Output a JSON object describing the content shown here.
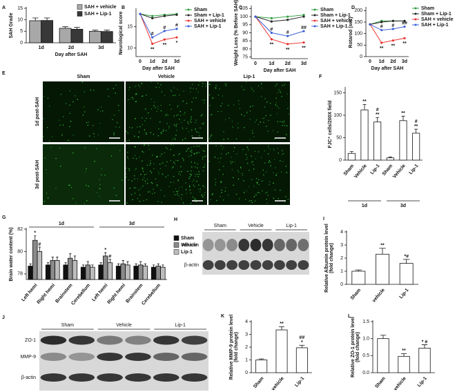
{
  "chart_data": [
    {
      "panel": "A",
      "type": "bar",
      "y_label": "SAH Grade",
      "x_label": "Day after SAH",
      "categories": [
        "1d",
        "2d",
        "3d"
      ],
      "ylim": [
        0,
        15
      ],
      "yticks": [
        0,
        5,
        10,
        15
      ],
      "legend": "top-right",
      "series": [
        {
          "name": "SAH + vehicle",
          "color": "#a8a8a8",
          "values": [
            9.6,
            6.3,
            5.0
          ],
          "errors": [
            1.2,
            0.7,
            0.5
          ]
        },
        {
          "name": "SAH + Lip-1",
          "color": "#383838",
          "values": [
            9.7,
            5.9,
            4.9
          ],
          "errors": [
            1.1,
            0.8,
            0.6
          ]
        }
      ]
    },
    {
      "panel": "B",
      "type": "line",
      "y_label": "Neurological score",
      "x_label": "Day after SAH",
      "categories": [
        "0",
        "1d",
        "2d",
        "3d"
      ],
      "ylim": [
        8,
        19
      ],
      "yticks": [
        10,
        15
      ],
      "legend": "right",
      "series": [
        {
          "name": "Sham",
          "color": "#2e9e3e",
          "values": [
            18,
            17.5,
            17.8,
            18
          ]
        },
        {
          "name": "Sham + Lip-1",
          "color": "#222222",
          "values": [
            18,
            17,
            17.5,
            17.8
          ]
        },
        {
          "name": "SAH + vehicle",
          "color": "#e8322e",
          "values": [
            18,
            11,
            12,
            12.5
          ],
          "annotations": [
            null,
            "**",
            "**",
            "*"
          ]
        },
        {
          "name": "SAH + Lip-1",
          "color": "#3a5fd8",
          "values": [
            18,
            12.5,
            14,
            14.5
          ],
          "annotations": [
            null,
            "#",
            "#",
            "#"
          ]
        }
      ]
    },
    {
      "panel": "C",
      "type": "line",
      "y_label": "Weight Loss (% Before SAH)",
      "x_label": "Day after SAH",
      "categories": [
        "0",
        "1d",
        "2d",
        "3d"
      ],
      "ylim": [
        74,
        106
      ],
      "yticks": [
        75,
        80,
        85,
        90,
        95,
        100,
        105
      ],
      "legend": "right",
      "series": [
        {
          "name": "Sham",
          "color": "#2e9e3e",
          "values": [
            100,
            99,
            100,
            101
          ]
        },
        {
          "name": "Sham + Lip-1",
          "color": "#222222",
          "values": [
            100,
            97,
            98,
            100
          ]
        },
        {
          "name": "SAH + vehicle",
          "color": "#e8322e",
          "values": [
            100,
            86,
            83,
            84
          ],
          "annotations": [
            null,
            "**",
            "**",
            "**"
          ]
        },
        {
          "name": "SAH + Lip-1",
          "color": "#3a5fd8",
          "values": [
            100,
            90,
            88,
            91
          ],
          "annotations": [
            null,
            "#",
            "#",
            "##"
          ]
        }
      ]
    },
    {
      "panel": "D",
      "type": "line",
      "y_label": "Rotarod (sec)",
      "x_label": "Day after SAH",
      "categories": [
        "0",
        "1d",
        "2d",
        "3d"
      ],
      "ylim": [
        0,
        210
      ],
      "yticks": [
        0,
        50,
        100,
        150,
        200
      ],
      "legend": "right",
      "series": [
        {
          "name": "Sham",
          "color": "#2e9e3e",
          "values": [
            140,
            155,
            155,
            155
          ]
        },
        {
          "name": "Sham + Lip-1",
          "color": "#222222",
          "values": [
            140,
            150,
            155,
            155
          ]
        },
        {
          "name": "SAH + vehicle",
          "color": "#e8322e",
          "values": [
            140,
            60,
            70,
            80
          ],
          "annotations": [
            null,
            "**",
            "**",
            "**"
          ]
        },
        {
          "name": "SAH + Lip-1",
          "color": "#3a5fd8",
          "values": [
            140,
            115,
            120,
            130
          ],
          "annotations": [
            null,
            "#",
            "#",
            "##"
          ]
        }
      ]
    },
    {
      "panel": "F",
      "type": "bar",
      "y_label": "FJC⁺ cells/200X field",
      "categories": [
        "Sham",
        "Vehicle",
        "Lip-1",
        "Sham",
        "Vehicle",
        "Lip-1"
      ],
      "groups": [
        "1d",
        "3d"
      ],
      "ylim": [
        0,
        160
      ],
      "yticks": [
        0,
        50,
        100,
        150
      ],
      "series": [
        {
          "color": "#ffffff",
          "values": [
            15,
            112,
            85,
            5,
            88,
            60
          ],
          "errors": [
            4,
            12,
            10,
            2,
            10,
            9
          ],
          "annotations": [
            null,
            "**",
            [
              "#",
              "**"
            ],
            null,
            "**",
            [
              "#",
              "**"
            ]
          ]
        }
      ]
    },
    {
      "panel": "G",
      "type": "bar",
      "y_label": "Brain water content (%)",
      "categories": [
        "Left hemi",
        "Right hemi",
        "Brainstem",
        "Cerebellum",
        "Left hemi",
        "Right hemi",
        "Brainstem",
        "Cerebellum"
      ],
      "groups": [
        "1d",
        "3d"
      ],
      "ylim": [
        77.5,
        82
      ],
      "yticks": [
        78,
        80,
        82
      ],
      "legend": "right",
      "series": [
        {
          "name": "Sham",
          "color": "#111111",
          "values": [
            78.7,
            78.8,
            78.8,
            78.6,
            78.8,
            78.7,
            78.7,
            78.6
          ],
          "errors": [
            0.2,
            0.2,
            0.2,
            0.2,
            0.2,
            0.2,
            0.2,
            0.2
          ]
        },
        {
          "name": "Vehicle",
          "color": "#8a8a8a",
          "values": [
            81.0,
            79.2,
            79.4,
            78.8,
            79.6,
            78.9,
            78.8,
            78.7
          ],
          "errors": [
            0.4,
            0.3,
            0.4,
            0.3,
            0.3,
            0.3,
            0.3,
            0.2
          ],
          "annotations": [
            "*",
            null,
            null,
            null,
            "*",
            null,
            null,
            null
          ]
        },
        {
          "name": "Lip-1",
          "color": "#bdbdbd",
          "values": [
            80.0,
            79.2,
            79.2,
            78.6,
            79.0,
            78.8,
            78.7,
            78.6
          ],
          "errors": [
            0.4,
            0.3,
            0.4,
            0.2,
            0.3,
            0.3,
            0.2,
            0.2
          ],
          "annotations": [
            "#",
            null,
            null,
            null,
            "#",
            null,
            null,
            null
          ]
        }
      ]
    },
    {
      "panel": "I",
      "type": "bar",
      "y_label": [
        "Relative Albumin protein level",
        "(fold change)"
      ],
      "categories": [
        "Sham",
        "vehicle",
        "Lip-1"
      ],
      "ylim": [
        0,
        4
      ],
      "yticks": [
        0,
        1,
        2,
        3,
        4
      ],
      "series": [
        {
          "color": "#ffffff",
          "values": [
            1.0,
            2.3,
            1.6
          ],
          "errors": [
            0.1,
            0.45,
            0.3
          ],
          "annotations": [
            null,
            "**",
            "*#"
          ]
        }
      ]
    },
    {
      "panel": "K",
      "type": "bar",
      "y_label": [
        "Relative MMP-9 protein level",
        "(fold change)"
      ],
      "categories": [
        "Sham",
        "vehicle",
        "Lip-1"
      ],
      "ylim": [
        0,
        4
      ],
      "yticks": [
        0,
        1,
        2,
        3,
        4
      ],
      "series": [
        {
          "color": "#ffffff",
          "values": [
            1.0,
            3.35,
            1.95
          ],
          "errors": [
            0.08,
            0.25,
            0.2
          ],
          "annotations": [
            null,
            "**",
            [
              "##",
              "*"
            ]
          ]
        }
      ]
    },
    {
      "panel": "L",
      "type": "bar",
      "y_label": [
        "Relative ZO-1 protein level",
        "(fold change)"
      ],
      "categories": [
        "Sham",
        "vehicle",
        "Lip-1"
      ],
      "ylim": [
        0,
        1.5
      ],
      "yticks": [
        {
          "value": 0,
          "label": "0.0"
        },
        0.5,
        {
          "value": 1,
          "label": "1.0"
        },
        1.5
      ],
      "series": [
        {
          "color": "#ffffff",
          "values": [
            1.0,
            0.48,
            0.72
          ],
          "errors": [
            0.1,
            0.08,
            0.1
          ],
          "annotations": [
            null,
            "**",
            "* #"
          ]
        }
      ]
    }
  ],
  "images": [
    {
      "panel": "E",
      "kind": "micrograph",
      "columns": [
        "Sham",
        "Vehicle",
        "Lip-1"
      ],
      "rows": [
        "1d post-SAH",
        "3d post-SAH"
      ]
    },
    {
      "panel": "H",
      "kind": "blot",
      "columns": [
        "Sham",
        "Vehicle",
        "Lip-1"
      ],
      "rows": [
        "Albumin",
        "β-actin"
      ]
    },
    {
      "panel": "J",
      "kind": "blot",
      "columns": [
        "Sham",
        "Vehicle",
        "Lip-1"
      ],
      "rows": [
        "ZO-1",
        "MMP-9",
        "β-actin"
      ]
    }
  ]
}
